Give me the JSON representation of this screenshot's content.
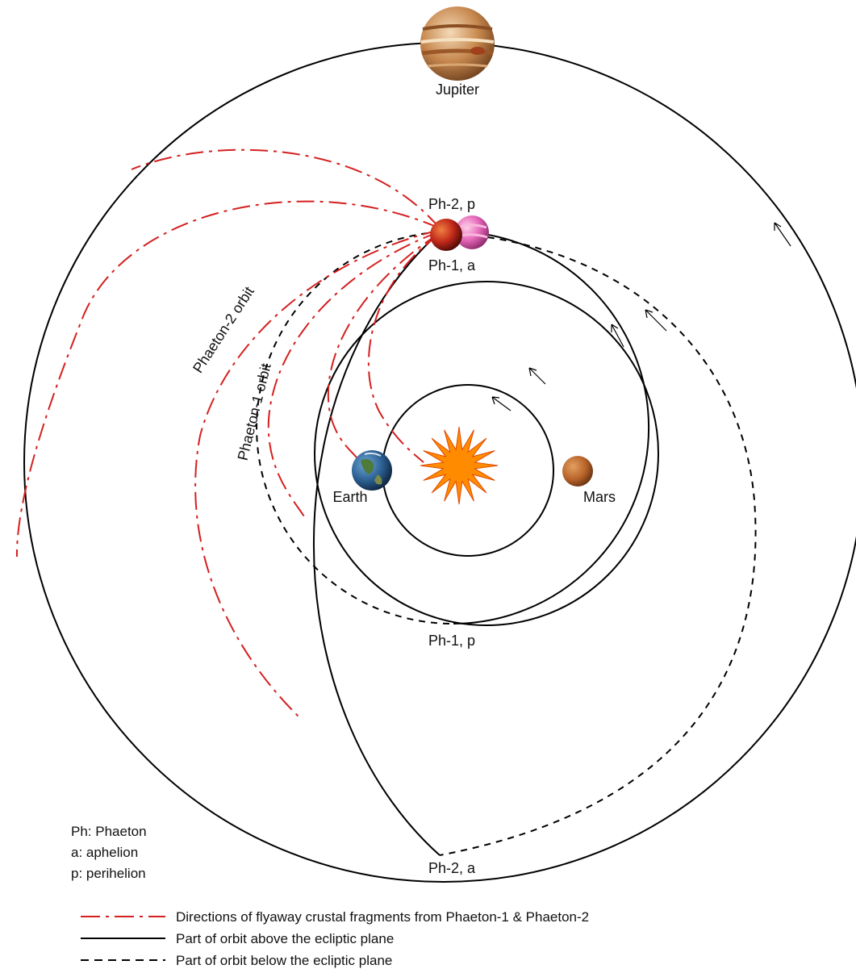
{
  "diagram": {
    "planets": {
      "jupiter": "Jupiter",
      "earth": "Earth",
      "mars": "Mars"
    },
    "points": {
      "ph2_perihelion": "Ph-2, p",
      "ph1_aphelion": "Ph-1, a",
      "ph1_perihelion": "Ph-1, p",
      "ph2_aphelion": "Ph-2, a"
    },
    "orbits": {
      "phaeton2": "Phaeton-2 orbit",
      "phaeton1": "Phaeton-1 orbit"
    },
    "abbreviations": [
      "Ph: Phaeton",
      "a: aphelion",
      "p: perihelion"
    ],
    "legend": [
      {
        "style": "dash-dot",
        "label": "Directions of flyaway crustal fragments from Phaeton-1 & Phaeton-2"
      },
      {
        "style": "solid",
        "label": "Part of orbit above the ecliptic plane"
      },
      {
        "style": "dashed",
        "label": "Part of orbit below the ecliptic plane"
      }
    ],
    "colors": {
      "fragment": "#d42020",
      "orbit": "#000000",
      "sun": "#ff8c00"
    },
    "icons": {
      "sun": "sun-icon",
      "jupiter": "jupiter-icon",
      "earth": "earth-icon",
      "mars": "mars-icon",
      "phaeton1": "phaeton-1-icon",
      "phaeton2": "phaeton-2-icon"
    }
  }
}
